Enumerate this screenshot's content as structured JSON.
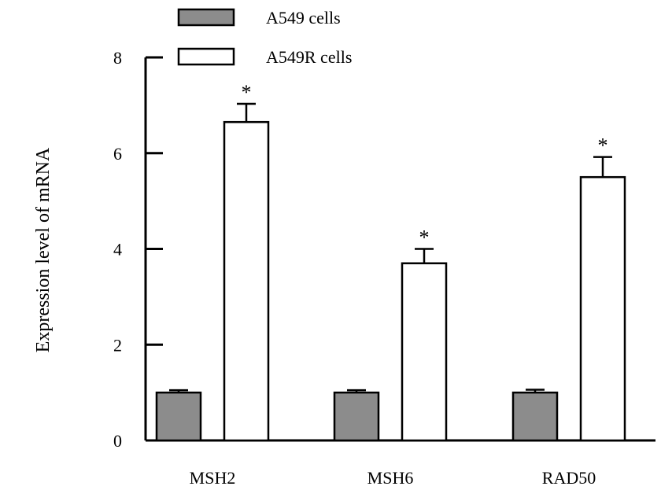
{
  "chart_data": {
    "type": "bar",
    "categories": [
      "MSH2",
      "MSH6",
      "RAD50"
    ],
    "series": [
      {
        "name": "A549 cells",
        "values": [
          1.0,
          1.0,
          1.0
        ],
        "errors": [
          0.05,
          0.05,
          0.06
        ],
        "color": "#8c8c8c",
        "significance": [
          "",
          "",
          ""
        ]
      },
      {
        "name": "A549R cells",
        "values": [
          6.65,
          3.7,
          5.5
        ],
        "errors": [
          0.38,
          0.3,
          0.42
        ],
        "color": "#ffffff",
        "significance": [
          "*",
          "*",
          "*"
        ]
      }
    ],
    "title": "",
    "xlabel": "",
    "ylabel": "Expression level of mRNA",
    "ylim": [
      0,
      8
    ],
    "yticks": [
      0,
      2,
      4,
      6,
      8
    ],
    "ytick_labels": [
      "0",
      "2",
      "4",
      "6",
      "8"
    ],
    "grid": false,
    "legend_position": "top-left"
  }
}
